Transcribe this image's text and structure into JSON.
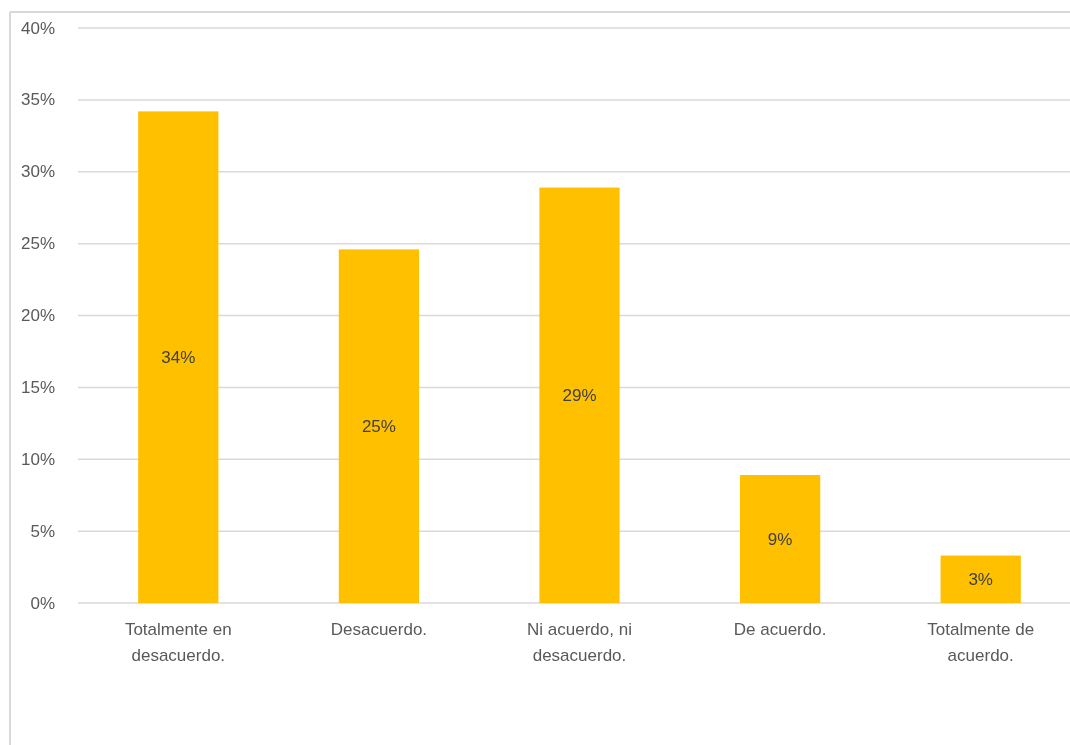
{
  "chart_data": {
    "type": "bar",
    "categories": [
      "Totalmente en desacuerdo.",
      "Desacuerdo.",
      "Ni acuerdo, ni desacuerdo.",
      "De acuerdo.",
      "Totalmente de acuerdo."
    ],
    "values": [
      34.2,
      24.6,
      28.9,
      8.9,
      3.3
    ],
    "value_labels": [
      "34%",
      "25%",
      "29%",
      "9%",
      "3%"
    ],
    "color": "#ffc000",
    "ylim": [
      0,
      40
    ],
    "yticks": [
      {
        "value": 0,
        "label": "0%"
      },
      {
        "value": 5,
        "label": "5%"
      },
      {
        "value": 10,
        "label": "10%"
      },
      {
        "value": 15,
        "label": "15%"
      },
      {
        "value": 20,
        "label": "20%"
      },
      {
        "value": 25,
        "label": "25%"
      },
      {
        "value": 30,
        "label": "30%"
      },
      {
        "value": 35,
        "label": "35%"
      },
      {
        "value": 40,
        "label": "40%"
      }
    ],
    "grid": "y"
  }
}
